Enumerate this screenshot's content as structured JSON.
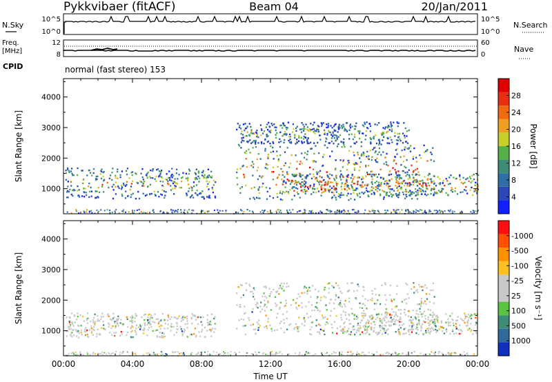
{
  "header": {
    "title": "Pykkvibaer (fitACF)",
    "beam": "Beam 04",
    "date": "20/Jan/2011"
  },
  "housekeeping": {
    "nsky_label": "N.Sky",
    "nsky_ticks": [
      "10^5",
      "10^0"
    ],
    "nsearch_label": "N.Search",
    "nsearch_ticks": [
      "10^5",
      "10^0"
    ],
    "freq_label": "Freq.",
    "freq_unit": "[MHz]",
    "freq_ticks": [
      "12",
      "8"
    ],
    "nave_label": "Nave",
    "nave_ticks": [
      "60",
      "0"
    ],
    "cpid_label": "CPID",
    "cpid_text": "normal (fast stereo) 153"
  },
  "chart_data": [
    {
      "type": "heatmap",
      "title": "",
      "xlabel": "Time UT",
      "ylabel": "Slant Range [km]",
      "x_ticks": [
        "00:00",
        "04:00",
        "08:00",
        "12:00",
        "16:00",
        "20:00",
        "00:00"
      ],
      "xlim_hours": [
        0,
        24
      ],
      "y_ticks": [
        1000,
        2000,
        3000,
        4000
      ],
      "ylim_km": [
        180,
        4600
      ],
      "colorbar": {
        "label": "Power [dB]",
        "tick_labels": [
          "4",
          "8",
          "12",
          "16",
          "20",
          "24",
          "28"
        ],
        "colors": [
          "#1020ff",
          "#2a48b8",
          "#2f6fa8",
          "#3c8c78",
          "#56b048",
          "#c8cf28",
          "#f0a020",
          "#f06a10",
          "#e83010",
          "#e00000"
        ]
      },
      "bands": [
        {
          "t0": 0.1,
          "t1": 8.8,
          "r_lo": 700,
          "r_hi": 1700,
          "level": 0.35
        },
        {
          "t0": 10.0,
          "t1": 21.5,
          "r_lo": 650,
          "r_hi": 2500,
          "level": 0.55
        },
        {
          "t0": 10.0,
          "t1": 20.0,
          "r_lo": 2500,
          "r_hi": 3200,
          "level": 0.2
        },
        {
          "t0": 12.6,
          "t1": 16.0,
          "r_lo": 850,
          "r_hi": 1500,
          "level": 0.85
        },
        {
          "t0": 16.0,
          "t1": 24.0,
          "r_lo": 800,
          "r_hi": 1500,
          "level": 0.6
        }
      ]
    },
    {
      "type": "heatmap",
      "title": "",
      "xlabel": "Time UT",
      "ylabel": "Slant Range [km]",
      "x_ticks": [
        "00:00",
        "04:00",
        "08:00",
        "12:00",
        "16:00",
        "20:00",
        "00:00"
      ],
      "xlim_hours": [
        0,
        24
      ],
      "y_ticks": [
        1000,
        2000,
        3000,
        4000
      ],
      "ylim_km": [
        180,
        4600
      ],
      "colorbar": {
        "label": "Velocity [m s⁻¹]",
        "tick_labels": [
          "1000",
          "500",
          "100",
          "25",
          "-25",
          "-100",
          "-500",
          "-1000"
        ],
        "colors": [
          "#1030c0",
          "#2e6a9c",
          "#3c8c78",
          "#59c440",
          "#c8c8c8",
          "#c8c8c8",
          "#ffc020",
          "#ff9000",
          "#ff5000",
          "#ff1010"
        ]
      },
      "bands": [
        {
          "t0": 0.1,
          "t1": 8.8,
          "r_lo": 800,
          "r_hi": 1600,
          "level": 0.5
        },
        {
          "t0": 10.0,
          "t1": 21.5,
          "r_lo": 900,
          "r_hi": 2600,
          "level": 0.5
        },
        {
          "t0": 16.0,
          "t1": 24.0,
          "r_lo": 900,
          "r_hi": 1600,
          "level": 0.5
        }
      ]
    }
  ]
}
